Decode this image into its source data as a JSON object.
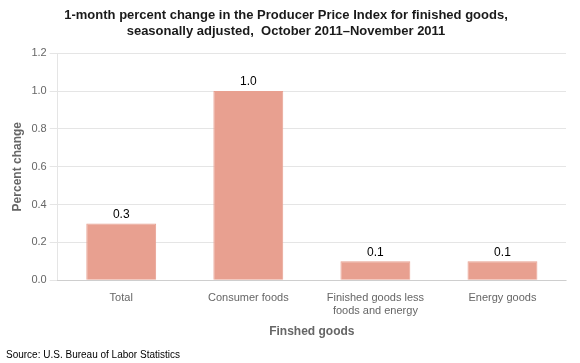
{
  "chart_data": {
    "type": "bar",
    "title": "1-month percent change in the Producer Price Index for finished goods,\nseasonally adjusted,  October 2011–November 2011",
    "categories": [
      "Total",
      "Consumer foods",
      "Finished goods less\nfoods and energy",
      "Energy goods"
    ],
    "values": [
      0.3,
      1.0,
      0.1,
      0.1
    ],
    "value_labels": [
      "0.3",
      "1.0",
      "0.1",
      "0.1"
    ],
    "data_labels": true,
    "color": "#E8A090",
    "xlabel": "Finshed goods",
    "ylabel": "Percent change",
    "ylim": [
      0,
      1.2
    ],
    "yticks": [
      {
        "value": 0,
        "label": "0.0"
      },
      0.2,
      0.4,
      0.6,
      0.8,
      {
        "value": 1,
        "label": "1.0"
      },
      1.2
    ],
    "grid": true,
    "annotations": [
      "Source: U.S. Bureau of Labor Statistics"
    ]
  }
}
